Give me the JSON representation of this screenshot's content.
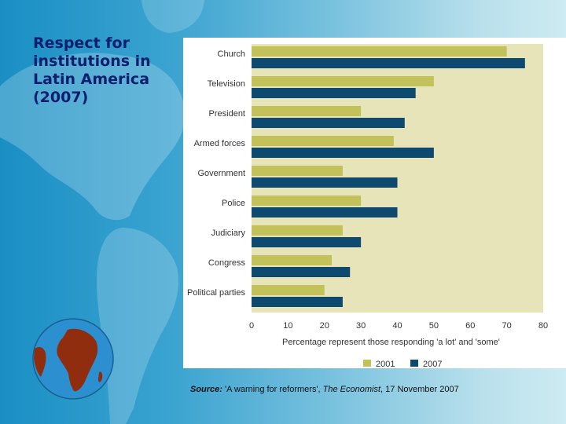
{
  "slide": {
    "title": "Respect for institutions in Latin America (2007)",
    "source_label": "Source:",
    "source_pre": "'A warning for reformers',",
    "source_pub": "The Economist",
    "source_post": ", 17 November 2007"
  },
  "colors": {
    "bar_2001": "#c3c25a",
    "bar_2007": "#0e4a70",
    "plot_bg": "#e6e4b8",
    "title_text": "#0b1f6e",
    "globe_ocean": "#2b8fd0",
    "globe_land": "#8f2d0e"
  },
  "chart_data": {
    "type": "bar",
    "orientation": "horizontal",
    "categories": [
      "Church",
      "Television",
      "President",
      "Armed forces",
      "Government",
      "Police",
      "Judiciary",
      "Congress",
      "Political parties"
    ],
    "series": [
      {
        "name": "2001",
        "values": [
          70,
          50,
          30,
          39,
          25,
          30,
          25,
          22,
          20
        ]
      },
      {
        "name": "2007",
        "values": [
          75,
          45,
          42,
          50,
          40,
          40,
          30,
          27,
          25
        ]
      }
    ],
    "xlim": [
      0,
      80
    ],
    "xticks": [
      0,
      10,
      20,
      30,
      40,
      50,
      60,
      70,
      80
    ],
    "xlabel": "Percentage represent those responding 'a lot' and 'some'",
    "legend_position": "bottom",
    "grid": false
  }
}
